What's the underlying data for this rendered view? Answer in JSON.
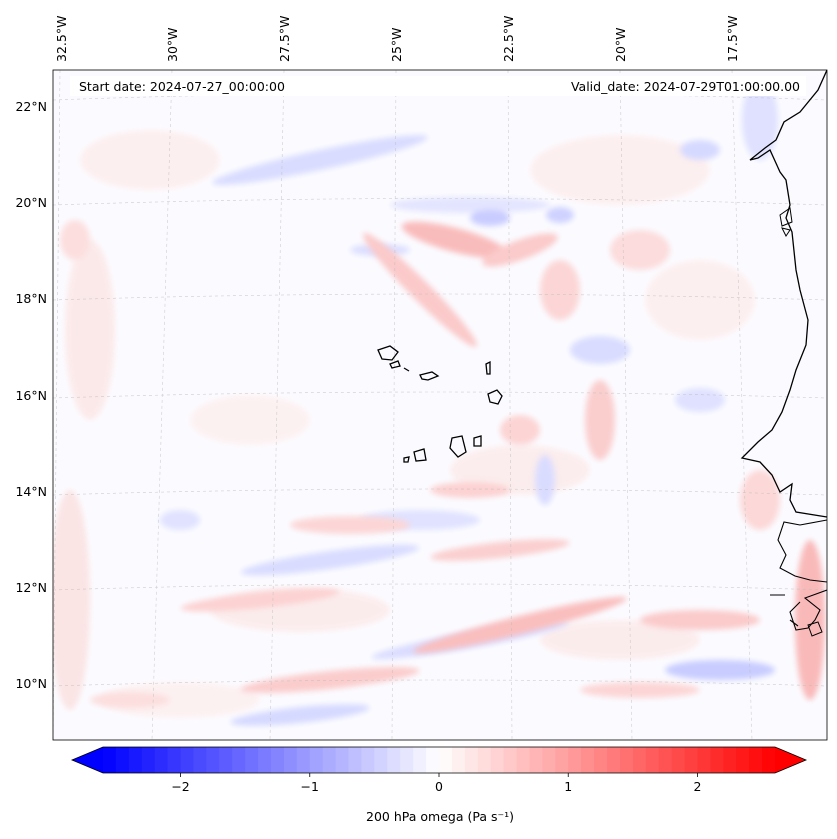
{
  "map": {
    "start_date_text": "Start date: 2024-07-27_00:00:00",
    "valid_date_text": "Valid_date: 2024-07-29T01:00:00.00",
    "lon_labels": [
      "32.5°W",
      "30°W",
      "27.5°W",
      "25°W",
      "22.5°W",
      "20°W",
      "17.5°W"
    ],
    "lat_labels": [
      "22°N",
      "20°N",
      "18°N",
      "16°N",
      "14°N",
      "12°N",
      "10°N"
    ],
    "features": [
      "Cape Verde islands",
      "West African coastline"
    ]
  },
  "colorbar": {
    "label": "200 hPa omega (Pa s⁻¹)",
    "ticks": [
      "−2",
      "−1",
      "0",
      "1",
      "2"
    ],
    "tick_values": [
      -2,
      -1,
      0,
      1,
      2
    ],
    "range": [
      -2.6,
      2.6
    ],
    "colormap": "bwr",
    "extend": "both",
    "colors": {
      "negative": "#0000ff",
      "zero": "#ffffff",
      "positive": "#ff0000"
    }
  }
}
